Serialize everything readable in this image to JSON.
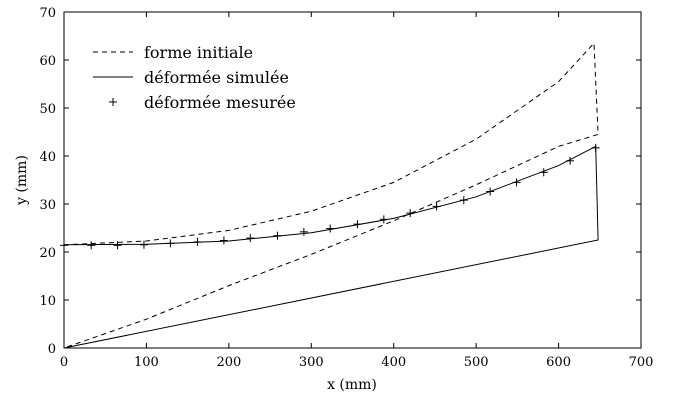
{
  "chart_data": {
    "type": "line",
    "title": "",
    "xlabel": "x (mm)",
    "ylabel": "y (mm)",
    "xlim": [
      0,
      700
    ],
    "ylim": [
      0,
      70
    ],
    "xticks": [
      0,
      100,
      200,
      300,
      400,
      500,
      600,
      700
    ],
    "yticks": [
      0,
      10,
      20,
      30,
      40,
      50,
      60,
      70
    ],
    "grid": false,
    "legend_position": "top-left",
    "series": [
      {
        "name": "forme initiale",
        "style": "dashed",
        "segments": [
          [
            [
              0,
              21.5
            ],
            [
              100,
              22.3
            ],
            [
              200,
              24.5
            ],
            [
              300,
              28.5
            ],
            [
              400,
              34.5
            ],
            [
              500,
              43.5
            ],
            [
              600,
              55.5
            ],
            [
              643,
              63.5
            ],
            [
              648,
              44.5
            ],
            [
              600,
              42
            ],
            [
              500,
              34
            ],
            [
              400,
              26.5
            ],
            [
              300,
              19.5
            ],
            [
              200,
              13
            ],
            [
              100,
              6
            ],
            [
              0,
              0
            ]
          ]
        ]
      },
      {
        "name": "déformée simulée",
        "style": "solid",
        "segments": [
          [
            [
              0,
              21.5
            ],
            [
              100,
              21.6
            ],
            [
              200,
              22.3
            ],
            [
              300,
              24
            ],
            [
              400,
              27
            ],
            [
              500,
              31.5
            ],
            [
              600,
              38
            ],
            [
              645,
              42
            ],
            [
              648,
              22.5
            ],
            [
              0,
              0
            ]
          ]
        ]
      },
      {
        "name": "déformée mesurée",
        "style": "plus-markers",
        "points": [
          [
            0,
            21.4
          ],
          [
            33,
            21.4
          ],
          [
            65,
            21.4
          ],
          [
            97,
            21.5
          ],
          [
            129,
            21.8
          ],
          [
            162,
            22.1
          ],
          [
            194,
            22.4
          ],
          [
            226,
            22.9
          ],
          [
            259,
            23.4
          ],
          [
            291,
            24.2
          ],
          [
            323,
            24.9
          ],
          [
            356,
            25.8
          ],
          [
            388,
            26.8
          ],
          [
            420,
            28.1
          ],
          [
            452,
            29.5
          ],
          [
            485,
            30.8
          ],
          [
            517,
            32.6
          ],
          [
            549,
            34.5
          ],
          [
            582,
            36.6
          ],
          [
            614,
            39
          ],
          [
            645,
            41.7
          ]
        ]
      }
    ]
  }
}
